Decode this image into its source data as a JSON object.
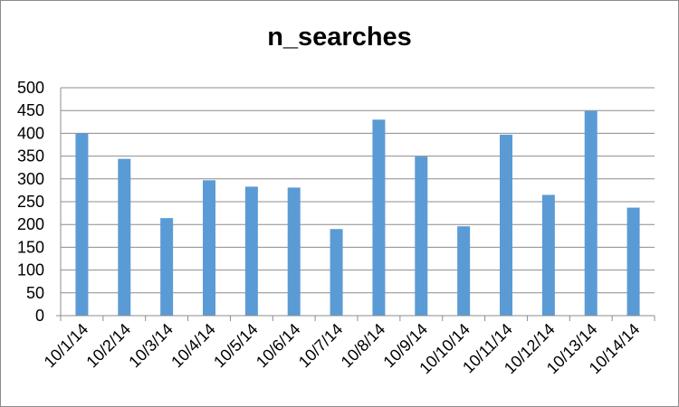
{
  "chart_data": {
    "type": "bar",
    "title": "n_searches",
    "xlabel": "",
    "ylabel": "",
    "categories": [
      "10/1/14",
      "10/2/14",
      "10/3/14",
      "10/4/14",
      "10/5/14",
      "10/6/14",
      "10/7/14",
      "10/8/14",
      "10/9/14",
      "10/10/14",
      "10/11/14",
      "10/12/14",
      "10/13/14",
      "10/14/14"
    ],
    "values": [
      400,
      344,
      214,
      297,
      283,
      281,
      190,
      430,
      349,
      196,
      397,
      265,
      449,
      237
    ],
    "ylim": [
      0,
      500
    ],
    "yticks": [
      0,
      50,
      100,
      150,
      200,
      250,
      300,
      350,
      400,
      450,
      500
    ],
    "grid": true,
    "legend": "none",
    "bar_color": "#5b9bd5",
    "grid_color": "#8c8c8c"
  }
}
